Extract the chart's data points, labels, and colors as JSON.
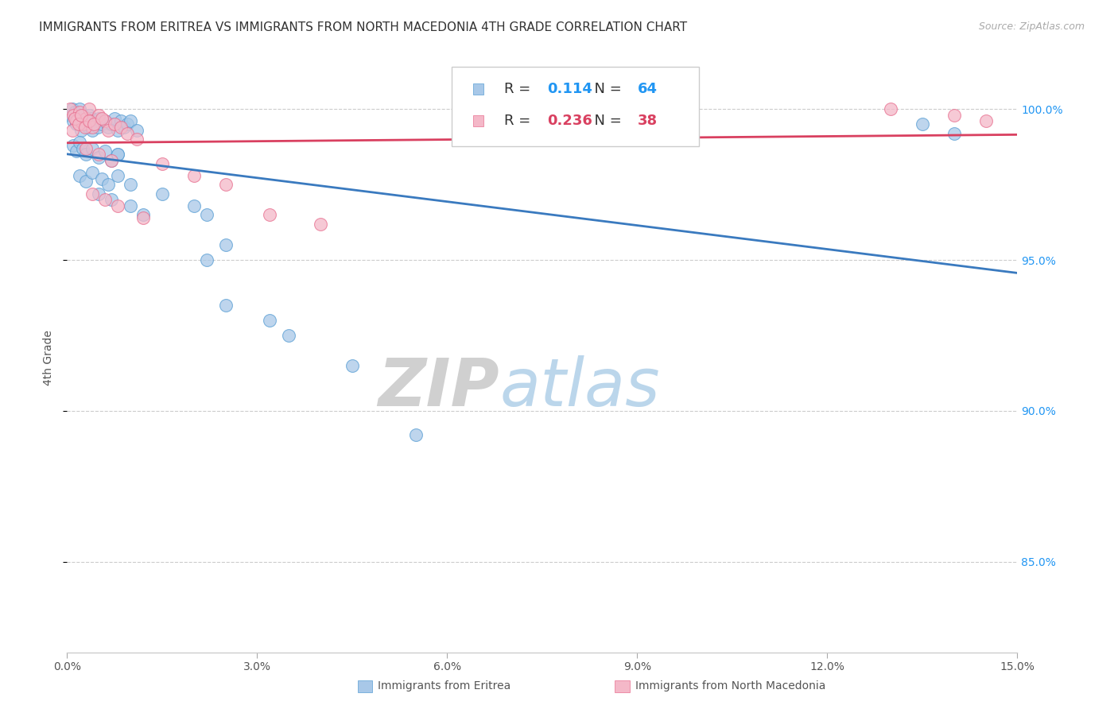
{
  "title": "IMMIGRANTS FROM ERITREA VS IMMIGRANTS FROM NORTH MACEDONIA 4TH GRADE CORRELATION CHART",
  "source": "Source: ZipAtlas.com",
  "ylabel": "4th Grade",
  "xlim": [
    0.0,
    15.0
  ],
  "ylim": [
    82.0,
    101.5
  ],
  "yticks": [
    85.0,
    90.0,
    95.0,
    100.0
  ],
  "ytick_labels": [
    "85.0%",
    "90.0%",
    "95.0%",
    "100.0%"
  ],
  "xticks": [
    0.0,
    3.0,
    6.0,
    9.0,
    12.0,
    15.0
  ],
  "xtick_labels": [
    "0.0%",
    "3.0%",
    "6.0%",
    "9.0%",
    "12.0%",
    "15.0%"
  ],
  "eritrea_R": 0.114,
  "eritrea_N": 64,
  "macedonia_R": 0.236,
  "macedonia_N": 38,
  "eritrea_color": "#a8c8e8",
  "eritrea_edge_color": "#5a9fd4",
  "eritrea_line_color": "#3a7abf",
  "macedonia_color": "#f4b8c8",
  "macedonia_edge_color": "#e87090",
  "macedonia_line_color": "#d94060",
  "eritrea_x": [
    0.05,
    0.08,
    0.1,
    0.12,
    0.15,
    0.18,
    0.2,
    0.22,
    0.25,
    0.28,
    0.3,
    0.33,
    0.35,
    0.38,
    0.4,
    0.43,
    0.45,
    0.48,
    0.5,
    0.55,
    0.6,
    0.65,
    0.7,
    0.75,
    0.8,
    0.85,
    0.9,
    0.95,
    1.0,
    1.1,
    0.1,
    0.15,
    0.2,
    0.25,
    0.3,
    0.4,
    0.5,
    0.6,
    0.7,
    0.8,
    0.2,
    0.3,
    0.4,
    0.55,
    0.65,
    0.8,
    0.5,
    0.7,
    1.0,
    1.2,
    2.2,
    2.5,
    2.2,
    2.5,
    3.2,
    3.5,
    4.5,
    5.5,
    0.8,
    1.0,
    1.5,
    2.0,
    13.5,
    14.0
  ],
  "eritrea_y": [
    99.8,
    100.0,
    99.6,
    99.9,
    99.5,
    99.7,
    100.0,
    99.3,
    99.8,
    99.5,
    99.6,
    99.4,
    99.8,
    99.7,
    99.3,
    99.5,
    99.6,
    99.4,
    99.7,
    99.5,
    99.6,
    99.4,
    99.5,
    99.7,
    99.3,
    99.6,
    99.4,
    99.5,
    99.6,
    99.3,
    98.8,
    98.6,
    98.9,
    98.7,
    98.5,
    98.7,
    98.4,
    98.6,
    98.3,
    98.5,
    97.8,
    97.6,
    97.9,
    97.7,
    97.5,
    97.8,
    97.2,
    97.0,
    96.8,
    96.5,
    95.0,
    93.5,
    96.5,
    95.5,
    93.0,
    92.5,
    91.5,
    89.2,
    98.5,
    97.5,
    97.2,
    96.8,
    99.5,
    99.2
  ],
  "macedonia_x": [
    0.05,
    0.1,
    0.15,
    0.2,
    0.25,
    0.3,
    0.35,
    0.4,
    0.5,
    0.6,
    0.08,
    0.12,
    0.18,
    0.22,
    0.28,
    0.35,
    0.42,
    0.55,
    0.65,
    0.75,
    0.85,
    0.95,
    1.1,
    0.3,
    0.5,
    0.7,
    1.5,
    2.0,
    2.5,
    0.4,
    0.6,
    3.2,
    4.0,
    13.0,
    14.0,
    14.5,
    0.8,
    1.2
  ],
  "macedonia_y": [
    100.0,
    99.8,
    99.6,
    99.9,
    99.5,
    99.7,
    100.0,
    99.4,
    99.8,
    99.6,
    99.3,
    99.7,
    99.5,
    99.8,
    99.4,
    99.6,
    99.5,
    99.7,
    99.3,
    99.5,
    99.4,
    99.2,
    99.0,
    98.7,
    98.5,
    98.3,
    98.2,
    97.8,
    97.5,
    97.2,
    97.0,
    96.5,
    96.2,
    100.0,
    99.8,
    99.6,
    96.8,
    96.4
  ],
  "watermark_zip": "ZIP",
  "watermark_atlas": "atlas",
  "background_color": "#ffffff",
  "grid_color": "#cccccc"
}
